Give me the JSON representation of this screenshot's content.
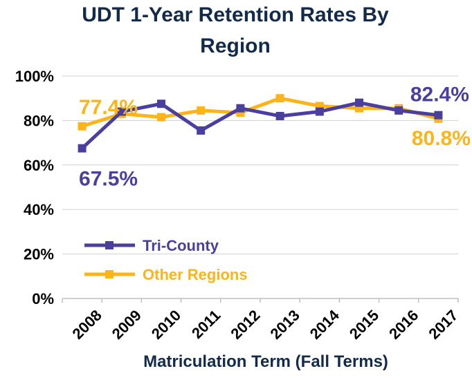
{
  "chart_data": {
    "type": "line",
    "title_lines": [
      "UDT 1-Year Retention Rates By",
      "Region"
    ],
    "xlabel": "Matriculation Term (Fall Terms)",
    "ylabel": "",
    "categories": [
      "2008",
      "2009",
      "2010",
      "2011",
      "2012",
      "2013",
      "2014",
      "2015",
      "2016",
      "2017"
    ],
    "y_ticks": [
      0,
      20,
      40,
      60,
      80,
      100
    ],
    "y_tick_labels": [
      "0%",
      "20%",
      "40%",
      "60%",
      "80%",
      "100%"
    ],
    "ylim": [
      0,
      100
    ],
    "grid": "horizontal",
    "legend_position": "lower-left",
    "series": [
      {
        "name": "Tri-County",
        "color": "#4b3f9e",
        "values": [
          67.5,
          84.0,
          87.5,
          75.5,
          85.5,
          82.0,
          84.0,
          88.0,
          84.5,
          82.4
        ]
      },
      {
        "name": "Other Regions",
        "color": "#fbb51a",
        "values": [
          77.4,
          83.0,
          81.5,
          84.5,
          83.5,
          90.0,
          86.5,
          85.5,
          85.5,
          80.8
        ]
      }
    ],
    "annotations": [
      {
        "series": 1,
        "index": 0,
        "text": "77.4%"
      },
      {
        "series": 0,
        "index": 0,
        "text": "67.5%"
      },
      {
        "series": 0,
        "index": 9,
        "text": "82.4%"
      },
      {
        "series": 1,
        "index": 9,
        "text": "80.8%"
      }
    ]
  }
}
